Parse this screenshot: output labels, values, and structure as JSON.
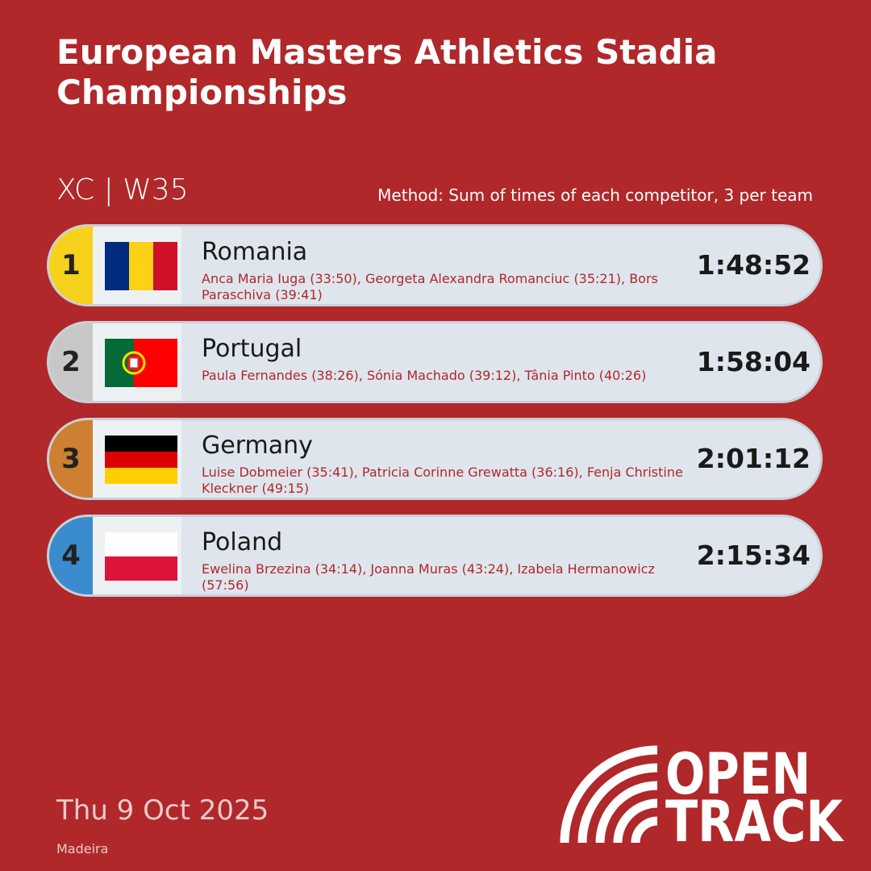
{
  "header": {
    "title": "European Masters Athletics Stadia Championships",
    "event": "XC | W35",
    "method": "Method: Sum of times of each competitor, 3 per team"
  },
  "rows": [
    {
      "rank": "1",
      "country": "Romania",
      "athletes": "Anca Maria Iuga (33:50), Georgeta Alexandra Romanciuc (35:21), Bors Paraschiva (39:41)",
      "time": "1:48:52"
    },
    {
      "rank": "2",
      "country": "Portugal",
      "athletes": "Paula Fernandes (38:26), Sónia Machado (39:12), Tânia Pinto (40:26)",
      "time": "1:58:04"
    },
    {
      "rank": "3",
      "country": "Germany",
      "athletes": "Luise Dobmeier (35:41), Patricia Corinne Grewatta (36:16), Fenja Christine Kleckner (49:15)",
      "time": "2:01:12"
    },
    {
      "rank": "4",
      "country": "Poland",
      "athletes": "Ewelina Brzezina (34:14), Joanna Muras (43:24), Izabela Hermanowicz (57:56)",
      "time": "2:15:34"
    }
  ],
  "footer": {
    "date": "Thu 9 Oct 2025",
    "location": "Madeira",
    "logo_top": "OPEN",
    "logo_bottom": "TRACK"
  }
}
